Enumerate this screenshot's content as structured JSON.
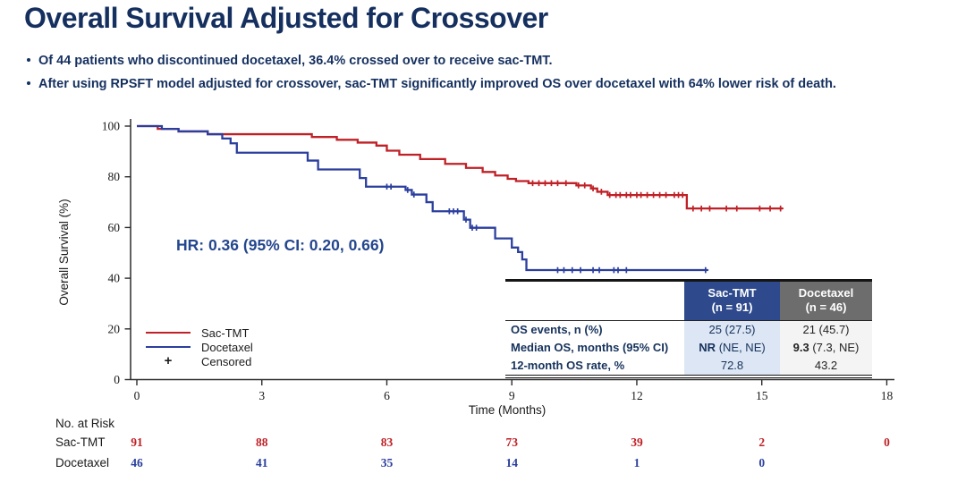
{
  "page": {
    "title": "Overall Survival Adjusted for Crossover",
    "bullets": [
      "Of 44 patients who discontinued docetaxel, 36.4% crossed over to receive sac-TMT.",
      "After using RPSFT model adjusted for crossover, sac-TMT significantly improved OS over docetaxel with 64% lower risk of death."
    ]
  },
  "colors": {
    "navy_text": "#15305f",
    "annotation_navy": "#24468e",
    "sac_red": "#bf2127",
    "docetaxel_blue": "#2b3f9e",
    "axis": "#2b2b2b",
    "sac_header_bg": "#2e4a8c",
    "docetaxel_header_bg": "#6d6d6d",
    "sac_col_bg": "#dce6f4",
    "docetaxel_col_bg": "#f4f4f4"
  },
  "chart_data": {
    "type": "line",
    "subtype": "kaplan-meier-step",
    "title": "",
    "xlabel": "Time (Months)",
    "ylabel": "Overall Survival (%)",
    "xlim": [
      0,
      18
    ],
    "xticks": [
      0,
      3,
      6,
      9,
      12,
      15,
      18
    ],
    "ylim": [
      0,
      100
    ],
    "yticks": [
      0,
      20,
      40,
      60,
      80,
      100
    ],
    "grid": false,
    "legend_position": "lower-left-inside",
    "annotation": "HR: 0.36 (95% CI: 0.20, 0.66)",
    "legend": [
      {
        "label": "Sac-TMT",
        "color": "#bf2127"
      },
      {
        "label": "Docetaxel",
        "color": "#2b3f9e"
      },
      {
        "label": "Censored",
        "symbol": "+"
      }
    ],
    "series": [
      {
        "name": "Sac-TMT",
        "color": "#bf2127",
        "end": 15.5,
        "steps": [
          [
            0,
            100
          ],
          [
            0.5,
            98.9
          ],
          [
            1.0,
            97.9
          ],
          [
            1.7,
            96.8
          ],
          [
            4.2,
            95.7
          ],
          [
            4.8,
            94.6
          ],
          [
            5.3,
            93.5
          ],
          [
            5.75,
            92.3
          ],
          [
            6.0,
            90.3
          ],
          [
            6.3,
            88.7
          ],
          [
            6.8,
            87.0
          ],
          [
            7.4,
            85.1
          ],
          [
            7.9,
            83.5
          ],
          [
            8.3,
            81.9
          ],
          [
            8.6,
            80.5
          ],
          [
            8.9,
            79.2
          ],
          [
            9.1,
            78.3
          ],
          [
            9.4,
            77.5
          ],
          [
            10.55,
            76.6
          ],
          [
            10.9,
            75.4
          ],
          [
            11.05,
            74.1
          ],
          [
            11.3,
            72.8
          ],
          [
            13.2,
            67.5
          ]
        ],
        "censors": [
          [
            9.5,
            77.5
          ],
          [
            9.65,
            77.5
          ],
          [
            9.8,
            77.5
          ],
          [
            9.95,
            77.5
          ],
          [
            10.1,
            77.5
          ],
          [
            10.3,
            77.5
          ],
          [
            10.6,
            76.6
          ],
          [
            10.75,
            76.6
          ],
          [
            10.95,
            75.4
          ],
          [
            11.15,
            74.1
          ],
          [
            11.35,
            72.8
          ],
          [
            11.5,
            72.8
          ],
          [
            11.6,
            72.8
          ],
          [
            11.75,
            72.8
          ],
          [
            11.85,
            72.8
          ],
          [
            12.0,
            72.8
          ],
          [
            12.1,
            72.8
          ],
          [
            12.25,
            72.8
          ],
          [
            12.4,
            72.8
          ],
          [
            12.55,
            72.8
          ],
          [
            12.7,
            72.8
          ],
          [
            12.9,
            72.8
          ],
          [
            13.0,
            72.8
          ],
          [
            13.1,
            72.8
          ],
          [
            13.35,
            67.5
          ],
          [
            13.55,
            67.5
          ],
          [
            13.75,
            67.5
          ],
          [
            14.15,
            67.5
          ],
          [
            14.4,
            67.5
          ],
          [
            14.95,
            67.5
          ],
          [
            15.2,
            67.5
          ],
          [
            15.45,
            67.5
          ]
        ]
      },
      {
        "name": "Docetaxel",
        "color": "#2b3f9e",
        "end": 13.7,
        "steps": [
          [
            0,
            100
          ],
          [
            0.6,
            98.9
          ],
          [
            1.0,
            97.9
          ],
          [
            1.7,
            96.8
          ],
          [
            2.05,
            95.1
          ],
          [
            2.25,
            93.2
          ],
          [
            2.4,
            89.5
          ],
          [
            4.1,
            86.4
          ],
          [
            4.35,
            82.9
          ],
          [
            5.35,
            79.5
          ],
          [
            5.5,
            76.1
          ],
          [
            6.45,
            74.8
          ],
          [
            6.6,
            73.0
          ],
          [
            6.95,
            70.0
          ],
          [
            7.1,
            66.4
          ],
          [
            7.85,
            63.1
          ],
          [
            8.0,
            59.9
          ],
          [
            8.6,
            55.7
          ],
          [
            9.0,
            52.1
          ],
          [
            9.15,
            50.3
          ],
          [
            9.25,
            47.4
          ],
          [
            9.35,
            43.2
          ]
        ],
        "censors": [
          [
            6.0,
            76.1
          ],
          [
            6.1,
            76.1
          ],
          [
            6.5,
            74.8
          ],
          [
            6.65,
            73.0
          ],
          [
            7.5,
            66.4
          ],
          [
            7.6,
            66.4
          ],
          [
            7.7,
            66.4
          ],
          [
            7.9,
            63.1
          ],
          [
            8.05,
            59.9
          ],
          [
            8.15,
            59.9
          ],
          [
            10.1,
            43.2
          ],
          [
            10.25,
            43.2
          ],
          [
            10.45,
            43.2
          ],
          [
            10.65,
            43.2
          ],
          [
            10.95,
            43.2
          ],
          [
            11.1,
            43.2
          ],
          [
            11.45,
            43.2
          ],
          [
            11.55,
            43.2
          ],
          [
            11.75,
            43.2
          ],
          [
            13.65,
            43.2
          ]
        ]
      }
    ],
    "risk_table": {
      "title": "No. at Risk",
      "months": [
        0,
        3,
        6,
        9,
        12,
        15,
        18
      ],
      "rows": [
        {
          "label": "Sac-TMT",
          "color": "#bf2127",
          "values": [
            91,
            88,
            83,
            73,
            39,
            2,
            0
          ]
        },
        {
          "label": "Docetaxel",
          "color": "#2b3f9e",
          "values": [
            46,
            41,
            35,
            14,
            1,
            0
          ]
        }
      ]
    }
  },
  "summary_table": {
    "columns": [
      {
        "name": "Sac-TMT",
        "n": "(n = 91)",
        "header_bg": "#2e4a8c",
        "col_bg": "#dce6f4",
        "text_color": "#16325c"
      },
      {
        "name": "Docetaxel",
        "n": "(n = 46)",
        "header_bg": "#6d6d6d",
        "col_bg": "#f4f4f4",
        "text_color": "#222222"
      }
    ],
    "rows": [
      {
        "label": "OS events, n (%)",
        "sac_bold": "",
        "sac_rest": "25 (27.5)",
        "doc_bold": "",
        "doc_rest": "21 (45.7)"
      },
      {
        "label": "Median OS, months (95% CI)",
        "sac_bold": "NR",
        "sac_rest": " (NE, NE)",
        "doc_bold": "9.3",
        "doc_rest": " (7.3, NE)"
      },
      {
        "label": "12-month OS rate, %",
        "sac_bold": "",
        "sac_rest": "72.8",
        "doc_bold": "",
        "doc_rest": "43.2"
      }
    ]
  }
}
